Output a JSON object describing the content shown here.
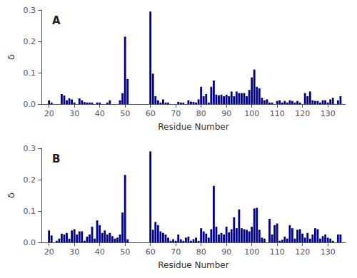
{
  "chart_data": [
    {
      "type": "bar",
      "title": "A",
      "x": [
        20,
        21,
        22,
        23,
        24,
        25,
        26,
        27,
        28,
        29,
        30,
        31,
        32,
        33,
        34,
        35,
        36,
        37,
        38,
        39,
        40,
        41,
        42,
        43,
        44,
        45,
        46,
        47,
        48,
        49,
        50,
        51,
        60,
        61,
        62,
        63,
        64,
        65,
        66,
        67,
        68,
        69,
        70,
        71,
        72,
        73,
        74,
        75,
        76,
        77,
        78,
        79,
        80,
        81,
        82,
        83,
        84,
        85,
        86,
        87,
        88,
        89,
        90,
        91,
        92,
        93,
        94,
        95,
        96,
        97,
        98,
        99,
        100,
        101,
        102,
        103,
        104,
        105,
        106,
        107,
        108,
        109,
        110,
        111,
        112,
        113,
        114,
        115,
        116,
        117,
        118,
        119,
        120,
        121,
        122,
        123,
        124,
        125,
        126,
        127,
        128,
        129,
        130,
        131,
        132,
        133,
        134,
        135
      ],
      "values": [
        0.012,
        0.005,
        0.0,
        0.0,
        0.0,
        0.032,
        0.027,
        0.012,
        0.018,
        0.015,
        0.005,
        0.0,
        0.018,
        0.012,
        0.006,
        0.005,
        0.005,
        0.005,
        0.0,
        0.005,
        0.005,
        0.0,
        0.0,
        0.005,
        0.012,
        0.0,
        0.0,
        0.0,
        0.012,
        0.035,
        0.215,
        0.08,
        0.295,
        0.097,
        0.025,
        0.012,
        0.005,
        0.015,
        0.005,
        0.005,
        0.0,
        0.0,
        0.0,
        0.007,
        0.005,
        0.005,
        0.0,
        0.012,
        0.008,
        0.007,
        0.005,
        0.015,
        0.055,
        0.025,
        0.032,
        0.005,
        0.055,
        0.075,
        0.03,
        0.028,
        0.03,
        0.025,
        0.03,
        0.025,
        0.04,
        0.025,
        0.04,
        0.035,
        0.035,
        0.035,
        0.025,
        0.045,
        0.085,
        0.11,
        0.055,
        0.05,
        0.02,
        0.012,
        0.015,
        0.005,
        0.005,
        0.0,
        0.01,
        0.012,
        0.005,
        0.01,
        0.005,
        0.012,
        0.01,
        0.005,
        0.01,
        0.005,
        0.0,
        0.035,
        0.025,
        0.04,
        0.012,
        0.01,
        0.01,
        0.005,
        0.012,
        0.012,
        0.005,
        0.015,
        0.02,
        0.0,
        0.012,
        0.025
      ],
      "color": "#00008B",
      "xlabel": "Residue Number",
      "ylabel": "δ",
      "xlim": [
        17,
        137
      ],
      "xticks": [
        20,
        30,
        40,
        50,
        60,
        70,
        80,
        90,
        100,
        110,
        120,
        130
      ],
      "ylim": [
        0,
        0.3
      ],
      "yticks": [
        {
          "value": 0,
          "label": "0.0"
        },
        0.1,
        0.2,
        0.3
      ],
      "grid": false
    },
    {
      "type": "bar",
      "title": "B",
      "x": [
        20,
        21,
        22,
        23,
        24,
        25,
        26,
        27,
        28,
        29,
        30,
        31,
        32,
        33,
        34,
        35,
        36,
        37,
        38,
        39,
        40,
        41,
        42,
        43,
        44,
        45,
        46,
        47,
        48,
        49,
        50,
        51,
        60,
        61,
        62,
        63,
        64,
        65,
        66,
        67,
        68,
        69,
        70,
        71,
        72,
        73,
        74,
        75,
        76,
        77,
        78,
        79,
        80,
        81,
        82,
        83,
        84,
        85,
        86,
        87,
        88,
        89,
        90,
        91,
        92,
        93,
        94,
        95,
        96,
        97,
        98,
        99,
        100,
        101,
        102,
        103,
        104,
        105,
        106,
        107,
        108,
        109,
        110,
        111,
        112,
        113,
        114,
        115,
        116,
        117,
        118,
        119,
        120,
        121,
        122,
        123,
        124,
        125,
        126,
        127,
        128,
        129,
        130,
        131,
        132,
        133,
        134,
        135
      ],
      "values": [
        0.038,
        0.022,
        0.0,
        0.005,
        0.012,
        0.028,
        0.025,
        0.03,
        0.012,
        0.038,
        0.042,
        0.025,
        0.035,
        0.035,
        0.005,
        0.018,
        0.025,
        0.05,
        0.012,
        0.07,
        0.055,
        0.03,
        0.038,
        0.025,
        0.03,
        0.02,
        0.012,
        0.015,
        0.025,
        0.095,
        0.215,
        0.01,
        0.29,
        0.04,
        0.065,
        0.055,
        0.035,
        0.03,
        0.025,
        0.015,
        0.005,
        0.01,
        0.005,
        0.025,
        0.01,
        0.005,
        0.015,
        0.018,
        0.005,
        0.01,
        0.015,
        0.005,
        0.045,
        0.035,
        0.028,
        0.015,
        0.042,
        0.18,
        0.05,
        0.025,
        0.03,
        0.025,
        0.05,
        0.032,
        0.042,
        0.08,
        0.045,
        0.105,
        0.045,
        0.042,
        0.04,
        0.035,
        0.05,
        0.108,
        0.11,
        0.04,
        0.015,
        0.012,
        0.0,
        0.075,
        0.025,
        0.055,
        0.06,
        0.005,
        0.008,
        0.018,
        0.012,
        0.055,
        0.045,
        0.012,
        0.04,
        0.042,
        0.028,
        0.015,
        0.03,
        0.012,
        0.025,
        0.045,
        0.042,
        0.012,
        0.02,
        0.025,
        0.015,
        0.012,
        0.005,
        0.0,
        0.025,
        0.025
      ],
      "color": "#00008B",
      "xlabel": "Residue Number",
      "ylabel": "δ",
      "xlim": [
        17,
        137
      ],
      "xticks": [
        20,
        30,
        40,
        50,
        60,
        70,
        80,
        90,
        100,
        110,
        120,
        130
      ],
      "ylim": [
        0,
        0.3
      ],
      "yticks": [
        {
          "value": 0,
          "label": "0.0"
        },
        0.1,
        0.2,
        0.3
      ],
      "grid": false
    }
  ]
}
